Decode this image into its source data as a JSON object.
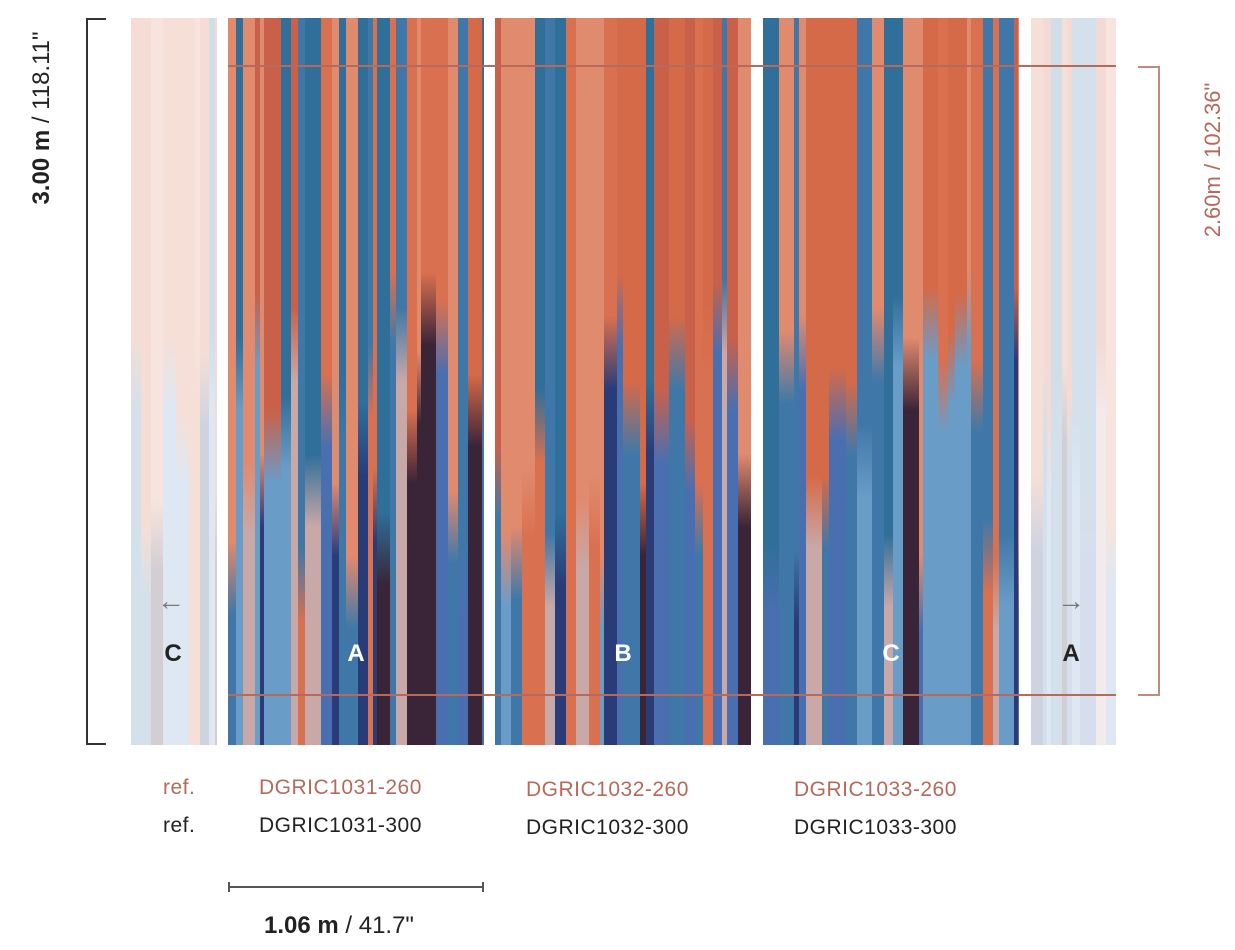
{
  "dimensions": {
    "total_height": {
      "bold": "3.00 m",
      "rest": " / 118.11\""
    },
    "visible_height": "2.60m / 102.36\"",
    "panel_width": {
      "bold": "1.06 m",
      "rest": " / 41.7\""
    }
  },
  "panels": [
    {
      "letter": "C",
      "role": "ghost-left"
    },
    {
      "letter": "A",
      "ref_260": "DGRIC1031-260",
      "ref_300": "DGRIC1031-300"
    },
    {
      "letter": "B",
      "ref_260": "DGRIC1032-260",
      "ref_300": "DGRIC1032-300"
    },
    {
      "letter": "C",
      "ref_260": "DGRIC1033-260",
      "ref_300": "DGRIC1033-300"
    },
    {
      "letter": "A",
      "role": "ghost-right"
    }
  ],
  "ref_label": "ref.",
  "icons": {
    "left": "arrow-left-icon",
    "right": "arrow-right-icon"
  },
  "colors": {
    "accent": "#b56a5c",
    "text": "#222222",
    "orange": "#d9704f",
    "blue": "#3f78a8",
    "dark": "#3a2438"
  }
}
